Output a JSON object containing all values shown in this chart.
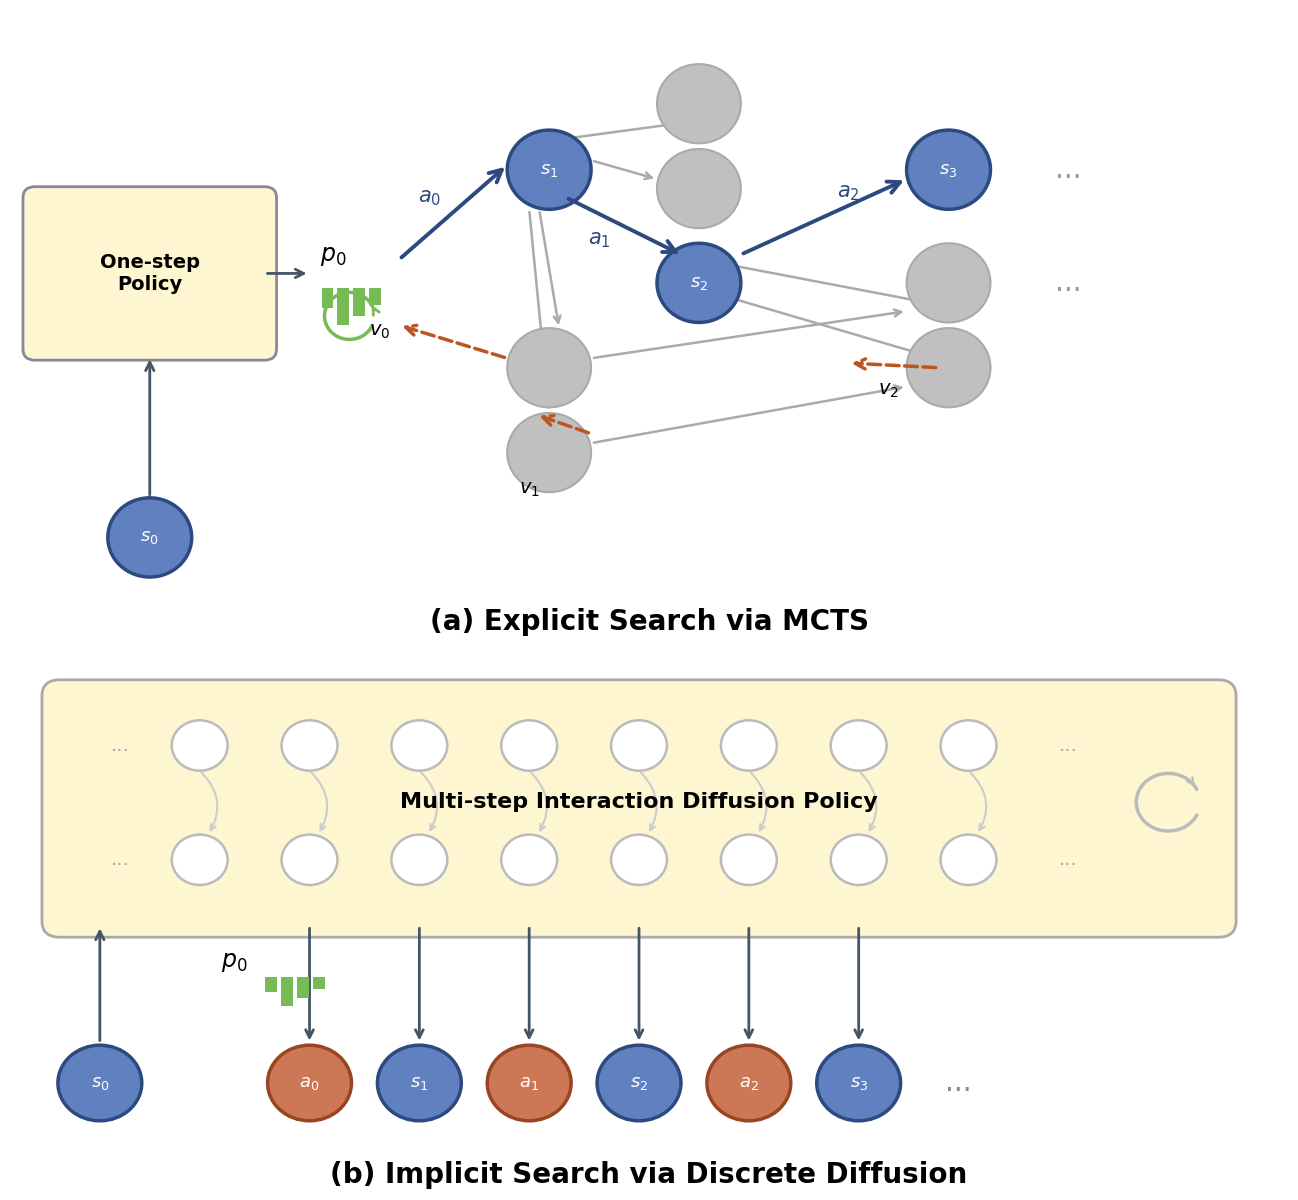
{
  "bg_color": "#ffffff",
  "blue_node_color": "#6080bf",
  "blue_node_edge": "#2d4a80",
  "gray_node_color": "#c0c0c0",
  "gray_node_edge": "#aaaaaa",
  "orange_node_color": "#cc7755",
  "orange_node_edge": "#994422",
  "policy_box_color": "#fef6d0",
  "policy_box_edge": "#888899",
  "yellow_box_color": "#fef6d0",
  "yellow_box_edge": "#aaaaaa",
  "dark_arrow_color": "#2d4a80",
  "gray_arrow_color": "#aaaaaa",
  "orange_dashed_color": "#bb5522",
  "green_color": "#77bb55",
  "dark_color": "#445566",
  "title_a": "(a) Explicit Search via MCTS",
  "title_b": "(b) Implicit Search via Discrete Diffusion",
  "policy_text": "One-step\nPolicy",
  "diffusion_text": "Multi-step Interaction Diffusion Policy"
}
